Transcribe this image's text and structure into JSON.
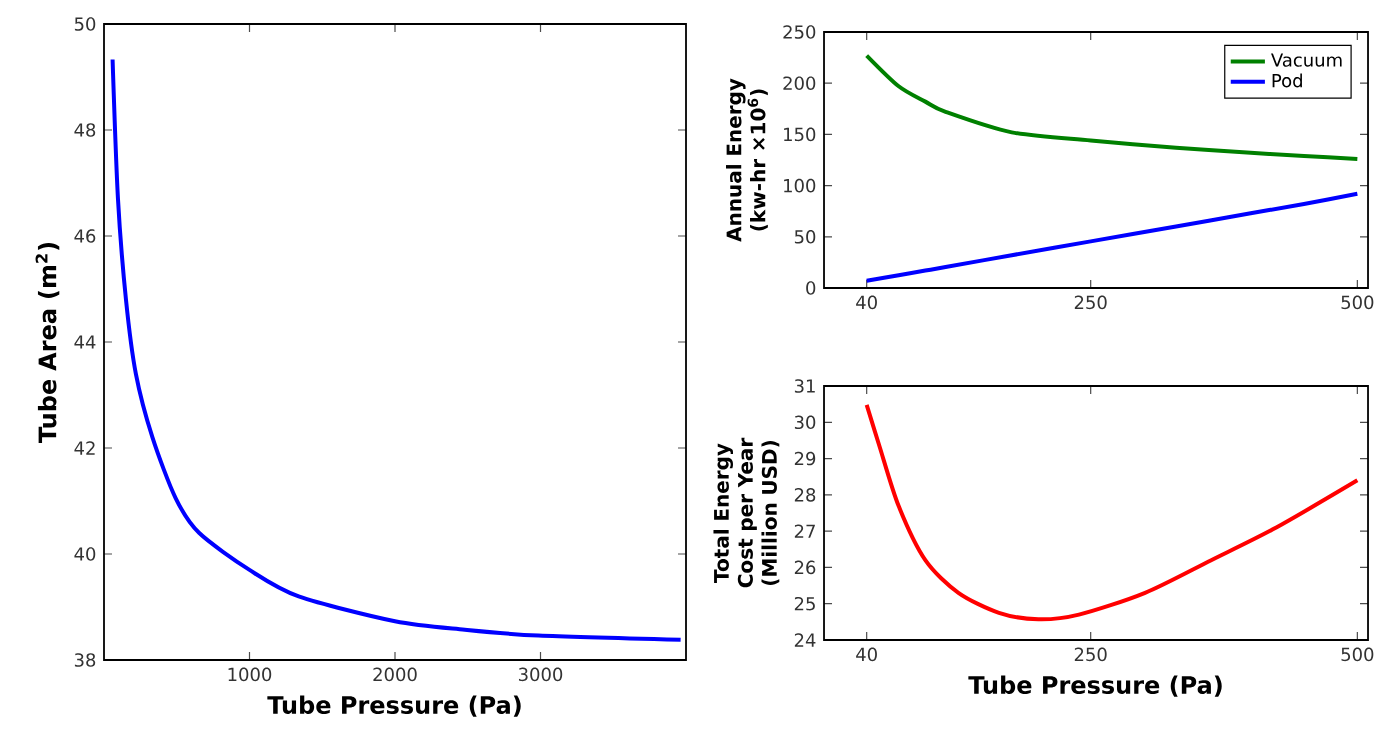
{
  "chart_data": [
    {
      "type": "line",
      "xlabel": "Tube Pressure (Pa)",
      "ylabel": "Tube Area (m$^{2}$)",
      "xlim": [
        0,
        4000
      ],
      "ylim": [
        38,
        50
      ],
      "xticks": [
        1000,
        2000,
        3000
      ],
      "yticks": [
        38,
        40,
        42,
        44,
        46,
        48,
        50
      ],
      "x": [
        59,
        96,
        151,
        219,
        333,
        493,
        653,
        1000,
        1338,
        2000,
        2480,
        2986,
        3963
      ],
      "series": [
        {
          "color": "#0000ff",
          "values": [
            49.33,
            46.7,
            44.8,
            43.4,
            42.2,
            41.05,
            40.4,
            39.7,
            39.2,
            38.73,
            38.57,
            38.46,
            38.38
          ]
        }
      ]
    },
    {
      "type": "line",
      "ylabel": "Annual Energy (kw-hr ×10$^{6}$)",
      "xlim": [
        0,
        510
      ],
      "ylim": [
        0,
        250
      ],
      "xticks": [
        40,
        250,
        500
      ],
      "yticks": [
        0,
        50,
        100,
        150,
        200,
        250
      ],
      "legend": "top right",
      "x": [
        40,
        70,
        95,
        114,
        176,
        250,
        330,
        400,
        450,
        500
      ],
      "series": [
        {
          "name": "Vacuum",
          "color": "#008000",
          "values": [
            227,
            197,
            182,
            172,
            152,
            144,
            137,
            132,
            129,
            126
          ]
        },
        {
          "name": "Pod",
          "color": "#0000ff",
          "values": [
            7,
            12.5,
            17,
            20.5,
            32,
            45.5,
            60,
            73,
            82,
            92
          ]
        }
      ]
    },
    {
      "type": "line",
      "xlabel": "Tube Pressure (Pa)",
      "ylabel": "Total Energy Cost per Year (Million USD)",
      "xlim": [
        0,
        510
      ],
      "ylim": [
        24,
        31
      ],
      "xticks": [
        40,
        250,
        500
      ],
      "yticks": [
        24,
        25,
        26,
        27,
        28,
        29,
        30,
        31
      ],
      "x": [
        40,
        52,
        70,
        95,
        126,
        164,
        201,
        239,
        301,
        363,
        424,
        500
      ],
      "series": [
        {
          "color": "#ff0000",
          "values": [
            30.48,
            29.34,
            27.69,
            26.2,
            25.3,
            24.75,
            24.57,
            24.7,
            25.3,
            26.2,
            27.1,
            28.4
          ]
        }
      ]
    }
  ]
}
